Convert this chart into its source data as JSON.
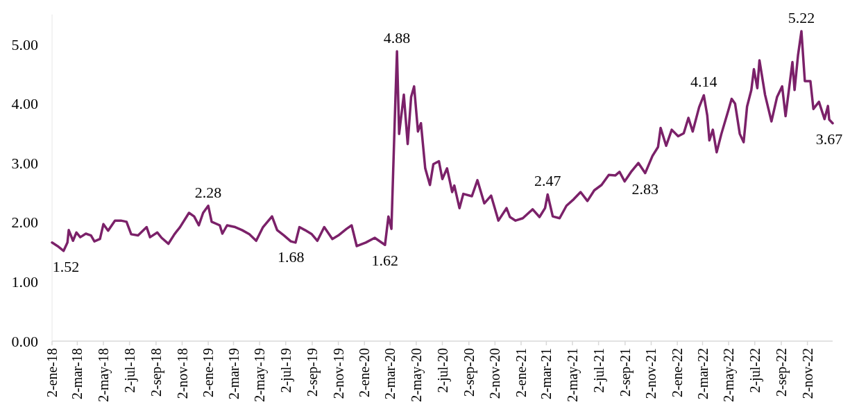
{
  "chart_data": {
    "type": "line",
    "x": [
      "2018-01-02",
      "2018-01-15",
      "2018-01-29",
      "2018-02-07",
      "2018-02-10",
      "2018-02-20",
      "2018-02-28",
      "2018-03-09",
      "2018-03-22",
      "2018-04-03",
      "2018-04-11",
      "2018-04-24",
      "2018-05-02",
      "2018-05-13",
      "2018-05-29",
      "2018-06-12",
      "2018-06-25",
      "2018-07-06",
      "2018-07-22",
      "2018-08-11",
      "2018-08-19",
      "2018-09-05",
      "2018-09-15",
      "2018-10-01",
      "2018-10-15",
      "2018-10-28",
      "2018-11-18",
      "2018-11-30",
      "2018-12-11",
      "2018-12-21",
      "2019-01-02",
      "2019-01-10",
      "2019-01-29",
      "2019-02-04",
      "2019-02-15",
      "2019-03-06",
      "2019-03-22",
      "2019-04-08",
      "2019-04-24",
      "2019-05-10",
      "2019-05-31",
      "2019-06-12",
      "2019-06-28",
      "2019-07-14",
      "2019-07-25",
      "2019-08-03",
      "2019-08-16",
      "2019-09-01",
      "2019-09-14",
      "2019-09-30",
      "2019-10-19",
      "2019-11-02",
      "2019-11-21",
      "2019-12-03",
      "2019-12-15",
      "2020-01-05",
      "2020-01-26",
      "2020-02-19",
      "2020-02-27",
      "2020-03-05",
      "2020-03-09",
      "2020-03-14",
      "2020-03-18",
      "2020-03-23",
      "2020-04-03",
      "2020-04-12",
      "2020-04-20",
      "2020-04-27",
      "2020-05-06",
      "2020-05-13",
      "2020-05-23",
      "2020-06-03",
      "2020-06-11",
      "2020-06-24",
      "2020-07-02",
      "2020-07-13",
      "2020-07-25",
      "2020-07-30",
      "2020-08-11",
      "2020-08-20",
      "2020-09-09",
      "2020-09-22",
      "2020-10-08",
      "2020-10-24",
      "2020-11-10",
      "2020-11-29",
      "2020-12-07",
      "2020-12-20",
      "2021-01-06",
      "2021-01-29",
      "2021-02-14",
      "2021-02-27",
      "2021-03-05",
      "2021-03-17",
      "2021-04-02",
      "2021-04-18",
      "2021-05-05",
      "2021-05-21",
      "2021-06-06",
      "2021-06-22",
      "2021-07-09",
      "2021-07-26",
      "2021-08-10",
      "2021-08-20",
      "2021-09-01",
      "2021-09-17",
      "2021-10-03",
      "2021-10-19",
      "2021-11-05",
      "2021-11-18",
      "2021-11-24",
      "2021-12-07",
      "2021-12-20",
      "2022-01-04",
      "2022-01-17",
      "2022-01-28",
      "2022-02-07",
      "2022-02-22",
      "2022-03-05",
      "2022-03-13",
      "2022-03-18",
      "2022-03-26",
      "2022-04-04",
      "2022-04-15",
      "2022-05-01",
      "2022-05-09",
      "2022-05-17",
      "2022-05-28",
      "2022-06-06",
      "2022-06-14",
      "2022-06-24",
      "2022-06-30",
      "2022-07-08",
      "2022-07-13",
      "2022-07-26",
      "2022-08-10",
      "2022-08-23",
      "2022-09-04",
      "2022-09-12",
      "2022-09-28",
      "2022-10-03",
      "2022-10-11",
      "2022-10-19",
      "2022-10-27",
      "2022-11-09",
      "2022-11-16",
      "2022-11-29",
      "2022-12-12",
      "2022-12-20",
      "2022-12-23",
      "2022-12-31"
    ],
    "series": [
      {
        "color": "#7b2169",
        "values": [
          1.66,
          1.6,
          1.52,
          1.66,
          1.87,
          1.69,
          1.83,
          1.75,
          1.81,
          1.78,
          1.68,
          1.72,
          1.97,
          1.86,
          2.03,
          2.03,
          2.01,
          1.8,
          1.78,
          1.92,
          1.75,
          1.83,
          1.74,
          1.64,
          1.8,
          1.92,
          2.16,
          2.1,
          1.95,
          2.16,
          2.28,
          2.01,
          1.95,
          1.81,
          1.95,
          1.92,
          1.87,
          1.8,
          1.69,
          1.92,
          2.1,
          1.87,
          1.78,
          1.68,
          1.66,
          1.92,
          1.87,
          1.8,
          1.69,
          1.92,
          1.72,
          1.78,
          1.89,
          1.95,
          1.6,
          1.66,
          1.74,
          1.62,
          2.1,
          1.89,
          2.83,
          4.0,
          4.88,
          3.49,
          4.15,
          3.32,
          4.11,
          4.29,
          3.53,
          3.67,
          2.91,
          2.63,
          2.98,
          3.03,
          2.73,
          2.91,
          2.51,
          2.62,
          2.24,
          2.48,
          2.44,
          2.71,
          2.32,
          2.45,
          2.03,
          2.24,
          2.09,
          2.03,
          2.07,
          2.22,
          2.09,
          2.24,
          2.47,
          2.1,
          2.07,
          2.28,
          2.39,
          2.51,
          2.36,
          2.54,
          2.63,
          2.8,
          2.79,
          2.85,
          2.69,
          2.86,
          3.0,
          2.83,
          3.12,
          3.27,
          3.59,
          3.29,
          3.56,
          3.45,
          3.5,
          3.76,
          3.53,
          3.94,
          4.14,
          3.8,
          3.38,
          3.56,
          3.18,
          3.49,
          3.88,
          4.08,
          4.0,
          3.49,
          3.35,
          3.95,
          4.23,
          4.58,
          4.26,
          4.73,
          4.15,
          3.7,
          4.11,
          4.29,
          3.79,
          4.7,
          4.23,
          4.81,
          5.22,
          4.38,
          4.38,
          3.91,
          4.03,
          3.74,
          3.96,
          3.73,
          3.67
        ]
      }
    ],
    "xlim": [
      "2018-01-02",
      "2022-12-31"
    ],
    "xticks": [
      {
        "value": "2018-01-02",
        "label": "2-ene-18"
      },
      {
        "value": "2018-03-02",
        "label": "2-mar-18"
      },
      {
        "value": "2018-05-02",
        "label": "2-may-18"
      },
      {
        "value": "2018-07-02",
        "label": "2-jul-18"
      },
      {
        "value": "2018-09-02",
        "label": "2-sep-18"
      },
      {
        "value": "2018-11-02",
        "label": "2-nov-18"
      },
      {
        "value": "2019-01-02",
        "label": "2-ene-19"
      },
      {
        "value": "2019-03-02",
        "label": "2-mar-19"
      },
      {
        "value": "2019-05-02",
        "label": "2-may-19"
      },
      {
        "value": "2019-07-02",
        "label": "2-jul-19"
      },
      {
        "value": "2019-09-02",
        "label": "2-sep-19"
      },
      {
        "value": "2019-11-02",
        "label": "2-nov-19"
      },
      {
        "value": "2020-01-02",
        "label": "2-ene-20"
      },
      {
        "value": "2020-03-02",
        "label": "2-mar-20"
      },
      {
        "value": "2020-05-02",
        "label": "2-may-20"
      },
      {
        "value": "2020-07-02",
        "label": "2-jul-20"
      },
      {
        "value": "2020-09-02",
        "label": "2-sep-20"
      },
      {
        "value": "2020-11-02",
        "label": "2-nov-20"
      },
      {
        "value": "2021-01-02",
        "label": "2-ene-21"
      },
      {
        "value": "2021-03-02",
        "label": "2-mar-21"
      },
      {
        "value": "2021-05-02",
        "label": "2-may-21"
      },
      {
        "value": "2021-07-02",
        "label": "2-jul-21"
      },
      {
        "value": "2021-09-02",
        "label": "2-sep-21"
      },
      {
        "value": "2021-11-02",
        "label": "2-nov-21"
      },
      {
        "value": "2022-01-02",
        "label": "2-ene-22"
      },
      {
        "value": "2022-03-02",
        "label": "2-mar-22"
      },
      {
        "value": "2022-05-02",
        "label": "2-may-22"
      },
      {
        "value": "2022-07-02",
        "label": "2-jul-22"
      },
      {
        "value": "2022-09-02",
        "label": "2-sep-22"
      },
      {
        "value": "2022-11-02",
        "label": "2-nov-22"
      }
    ],
    "ylim": [
      0,
      5.5
    ],
    "yticks": [
      {
        "value": 0,
        "label": "0.00"
      },
      {
        "value": 1,
        "label": "1.00"
      },
      {
        "value": 2,
        "label": "2.00"
      },
      {
        "value": 3,
        "label": "3.00"
      },
      {
        "value": 4,
        "label": "4.00"
      },
      {
        "value": 5,
        "label": "5.00"
      }
    ],
    "annotations": [
      {
        "text": "1.52",
        "x": "2018-01-29",
        "y": 1.52
      },
      {
        "text": "2.28",
        "x": "2019-01-02",
        "y": 2.28
      },
      {
        "text": "1.68",
        "x": "2019-07-14",
        "y": 1.68
      },
      {
        "text": "1.62",
        "x": "2020-02-19",
        "y": 1.62
      },
      {
        "text": "4.88",
        "x": "2020-03-18",
        "y": 4.88
      },
      {
        "text": "2.47",
        "x": "2021-03-05",
        "y": 2.47
      },
      {
        "text": "2.83",
        "x": "2021-10-19",
        "y": 2.83
      },
      {
        "text": "4.14",
        "x": "2022-03-05",
        "y": 4.14
      },
      {
        "text": "5.22",
        "x": "2022-10-19",
        "y": 5.22
      },
      {
        "text": "3.67",
        "x": "2022-12-31",
        "y": 3.67
      }
    ],
    "grid": false,
    "line_style": "solid",
    "marker": "none"
  }
}
